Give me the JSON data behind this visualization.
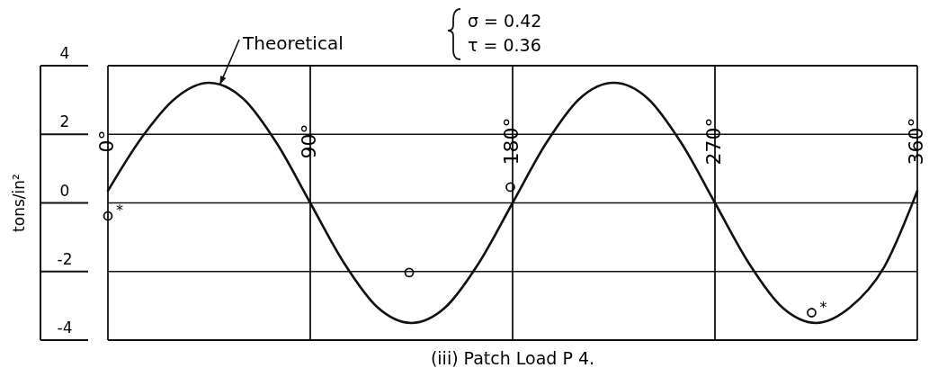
{
  "chart_data": {
    "type": "line",
    "title": "(iii) Patch Load P 4.",
    "ylabel": "tons/in²",
    "xlim": [
      0,
      360
    ],
    "ylim": [
      -4,
      4
    ],
    "xticks": [
      {
        "value": 0,
        "label": "0°"
      },
      {
        "value": 90,
        "label": "90°"
      },
      {
        "value": 180,
        "label": "180°"
      },
      {
        "value": 270,
        "label": "270°"
      },
      {
        "value": 360,
        "label": "360°"
      }
    ],
    "yticks": [
      4,
      2,
      0,
      -2,
      -4
    ],
    "grid": true,
    "series": [
      {
        "name": "Theoretical",
        "color": "#111111",
        "marker": "none",
        "line_style": "solid",
        "x": [
          0,
          15,
          30,
          45,
          60,
          75,
          90,
          105,
          120,
          135,
          150,
          165,
          180,
          195,
          210,
          225,
          240,
          255,
          270,
          285,
          300,
          315,
          330,
          345,
          360
        ],
        "values": [
          0.35,
          1.9,
          3.05,
          3.5,
          3.05,
          1.75,
          0,
          -1.75,
          -3.05,
          -3.5,
          -3.05,
          -1.75,
          0,
          1.75,
          3.05,
          3.5,
          3.05,
          1.75,
          0,
          -1.75,
          -3.05,
          -3.5,
          -3.05,
          -1.9,
          0.35
        ]
      },
      {
        "type": "scatter",
        "color": "#111111",
        "marker": "circle",
        "x": [
          0,
          134,
          179,
          313
        ],
        "values": [
          -0.38,
          -2.03,
          0.46,
          -3.2
        ]
      }
    ],
    "annotations": [
      "σ = 0.42",
      "τ = 0.36",
      {
        "text": "*",
        "x": 0,
        "y": -0.38
      },
      {
        "text": "*",
        "x": 313,
        "y": -3.2
      }
    ]
  }
}
